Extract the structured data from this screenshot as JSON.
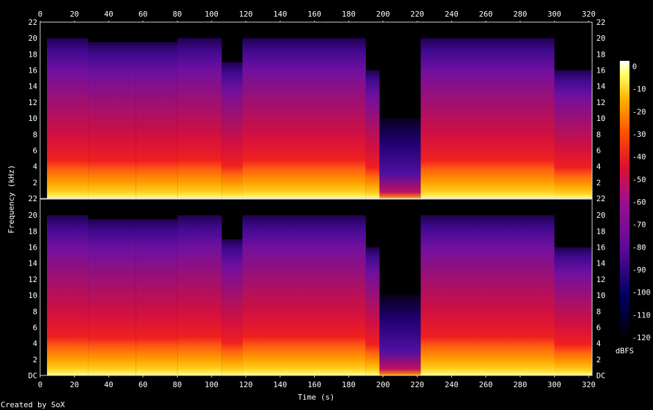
{
  "chart_data": {
    "type": "heatmap",
    "title": "",
    "xlabel": "Time (s)",
    "ylabel": "Frequency (kHz)",
    "xlim": [
      0,
      322
    ],
    "ylim": [
      0,
      22
    ],
    "x_ticks": [
      "0",
      "20",
      "40",
      "60",
      "80",
      "100",
      "120",
      "140",
      "160",
      "180",
      "200",
      "220",
      "240",
      "260",
      "280",
      "300",
      "320"
    ],
    "y_ticks": [
      "DC",
      "2",
      "4",
      "6",
      "8",
      "10",
      "12",
      "14",
      "16",
      "18",
      "20",
      "22"
    ],
    "channels": 2,
    "colorbar": {
      "label": "dBFS",
      "ticks": [
        "0",
        "-10",
        "-20",
        "-30",
        "-40",
        "-50",
        "-60",
        "-70",
        "-80",
        "-90",
        "-100",
        "-110",
        "-120"
      ],
      "range": [
        -120,
        0
      ]
    },
    "segments": [
      {
        "start": 4,
        "end": 28,
        "top_khz": 20
      },
      {
        "start": 28,
        "end": 56,
        "top_khz": 19.5
      },
      {
        "start": 56,
        "end": 80,
        "top_khz": 19.5
      },
      {
        "start": 80,
        "end": 106,
        "top_khz": 20
      },
      {
        "start": 106,
        "end": 118,
        "top_khz": 17
      },
      {
        "start": 118,
        "end": 190,
        "top_khz": 20
      },
      {
        "start": 190,
        "end": 198,
        "top_khz": 16
      },
      {
        "start": 198,
        "end": 222,
        "top_khz": 10
      },
      {
        "start": 222,
        "end": 300,
        "top_khz": 20
      },
      {
        "start": 300,
        "end": 322,
        "top_khz": 16
      }
    ],
    "annotation": "Created by SoX"
  }
}
